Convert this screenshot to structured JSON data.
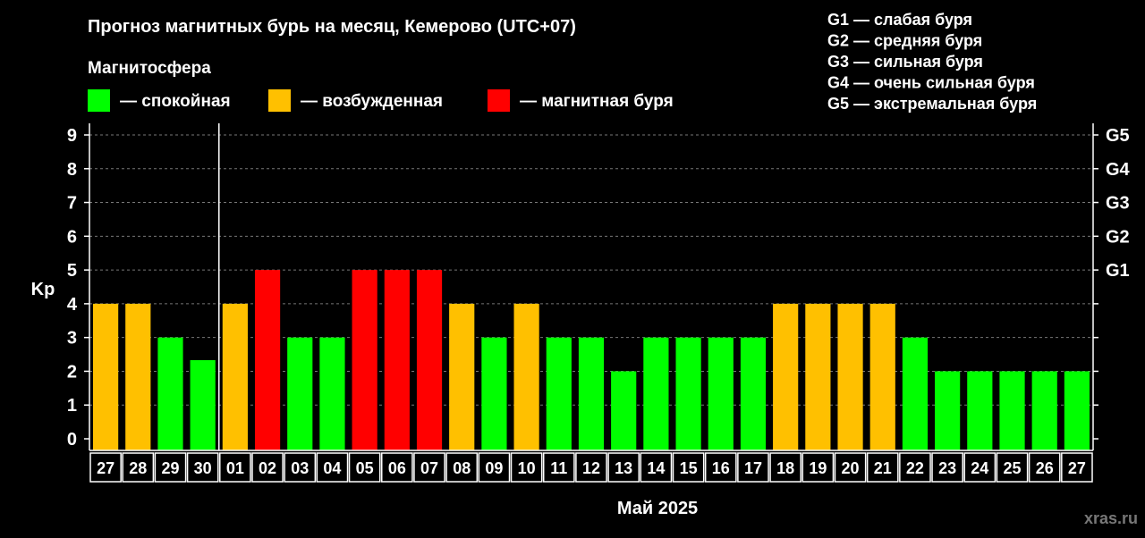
{
  "chart_data": {
    "type": "bar",
    "title": "Прогноз магнитных бурь на месяц, Кемерово (UTC+07)",
    "ylabel": "Kp",
    "xlabel": "Май 2025",
    "ylim": [
      0,
      9
    ],
    "yticks": [
      0,
      1,
      2,
      3,
      4,
      5,
      6,
      7,
      8,
      9
    ],
    "g_levels": [
      {
        "label": "G1",
        "kp": 5
      },
      {
        "label": "G2",
        "kp": 6
      },
      {
        "label": "G3",
        "kp": 7
      },
      {
        "label": "G4",
        "kp": 8
      },
      {
        "label": "G5",
        "kp": 9
      }
    ],
    "legend_title": "Магнитосфера",
    "legend": [
      {
        "label": "— спокойная",
        "color": "#00ff00"
      },
      {
        "label": "— возбужденная",
        "color": "#ffc000"
      },
      {
        "label": "— магнитная буря",
        "color": "#ff0000"
      }
    ],
    "storm_legend": [
      "G1 — слабая буря",
      "G2 — средняя буря",
      "G3 — сильная буря",
      "G4 — очень сильная буря",
      "G5 — экстремальная буря"
    ],
    "categories": [
      "27",
      "28",
      "29",
      "30",
      "01",
      "02",
      "03",
      "04",
      "05",
      "06",
      "07",
      "08",
      "09",
      "10",
      "11",
      "12",
      "13",
      "14",
      "15",
      "16",
      "17",
      "18",
      "19",
      "20",
      "21",
      "22",
      "23",
      "24",
      "25",
      "26",
      "27"
    ],
    "values": [
      4,
      4,
      3,
      2.33,
      4,
      5,
      3,
      3,
      5,
      5,
      5,
      4,
      3,
      4,
      3,
      3,
      2,
      3,
      3,
      3,
      3,
      4,
      4,
      4,
      4,
      3,
      2,
      2,
      2,
      2,
      2
    ],
    "status": [
      "excited",
      "excited",
      "calm",
      "calm",
      "excited",
      "storm",
      "calm",
      "calm",
      "storm",
      "storm",
      "storm",
      "excited",
      "calm",
      "excited",
      "calm",
      "calm",
      "calm",
      "calm",
      "calm",
      "calm",
      "calm",
      "excited",
      "excited",
      "excited",
      "excited",
      "calm",
      "calm",
      "calm",
      "calm",
      "calm",
      "calm"
    ],
    "status_colors": {
      "calm": "#00ff00",
      "excited": "#ffc000",
      "storm": "#ff0000"
    },
    "grid": true,
    "legend_position": "top"
  },
  "watermark": "xras.ru"
}
